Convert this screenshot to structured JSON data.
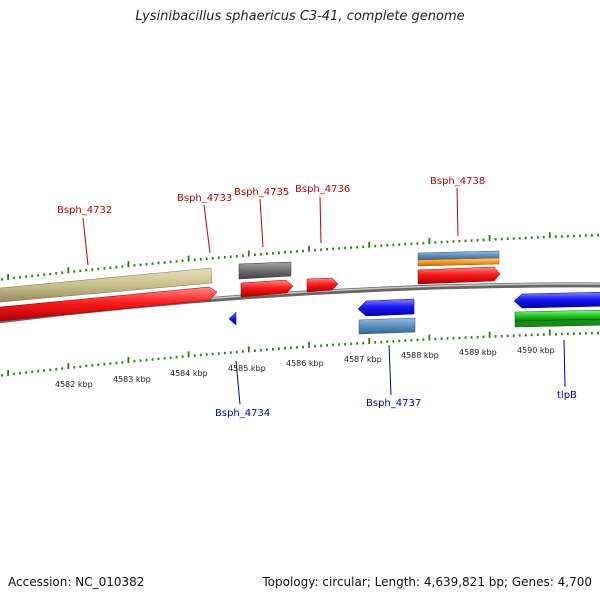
{
  "title": "Lysinibacillus sphaericus C3-41, complete genome",
  "footer": {
    "accession": "Accession: NC_010382",
    "summary": "Topology: circular; Length: 4,639,821 bp; Genes: 4,700"
  },
  "ticks": [
    "4582 kbp",
    "4583 kbp",
    "4584 kbp",
    "4585 kbp",
    "4586 kbp",
    "4587 kbp",
    "4588 kbp",
    "4589 kbp",
    "4590 kbp"
  ],
  "forward_labels": [
    "Bsph_4732",
    "Bsph_4733",
    "Bsph_4735",
    "Bsph_4736",
    "Bsph_4738"
  ],
  "reverse_labels": [
    "Bsph_4734",
    "Bsph_4737",
    "tlpB"
  ],
  "colors": {
    "forward_gene": "#ff1a1a",
    "reverse_gene": "#1a1aff",
    "khaki_feature": "#c8bf8a",
    "gray_feature": "#6e6e6e",
    "steel_feature": "#5a8fc0",
    "orange_feature": "#ff9a1a",
    "green_feature": "#22cc22",
    "tick_green": "#2a7a10",
    "backbone": "#8a8a8a"
  }
}
